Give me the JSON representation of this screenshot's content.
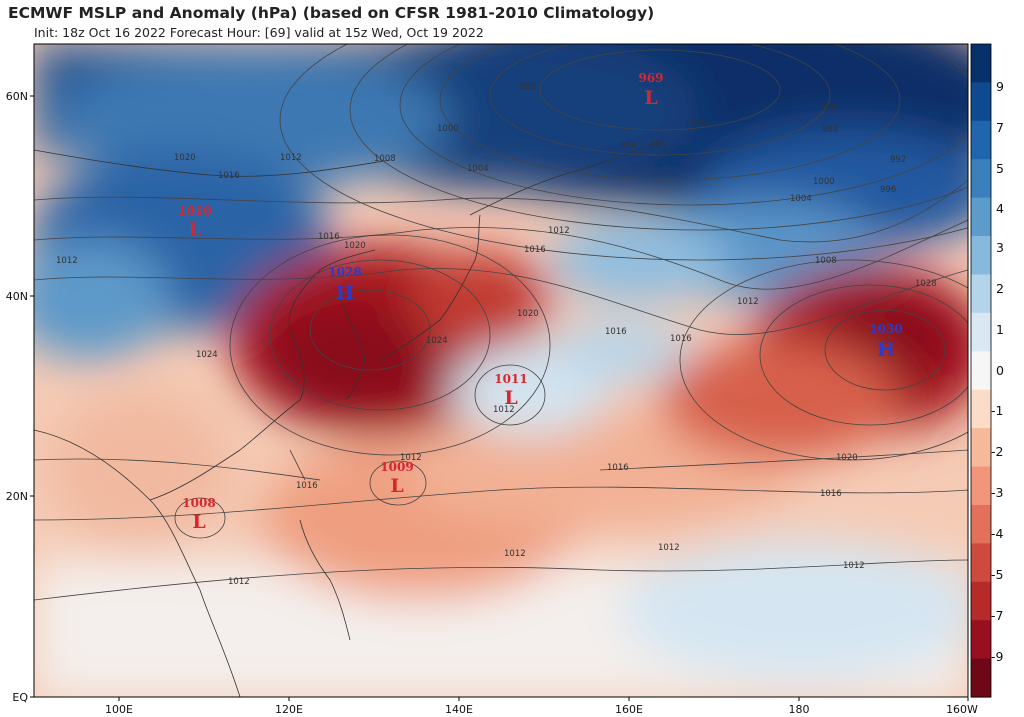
{
  "header": {
    "title": "ECMWF MSLP and Anomaly (hPa) (based on CFSR 1981-2010 Climatology)",
    "subtitle": "Init: 18z Oct 16 2022   Forecast Hour: [69]   valid at 15z Wed, Oct 19 2022"
  },
  "axes": {
    "lat_labels": [
      "60N",
      "40N",
      "20N",
      "EQ"
    ],
    "lon_labels": [
      "100E",
      "120E",
      "140E",
      "160E",
      "180",
      "160W"
    ]
  },
  "colorbar": {
    "ticks": [
      "9",
      "7",
      "5",
      "4",
      "3",
      "2",
      "1",
      "0",
      "-1",
      "-2",
      "-3",
      "-4",
      "-5",
      "-7",
      "-9"
    ],
    "colors": [
      "#08306b",
      "#0d4a8f",
      "#1f66ad",
      "#3a80bd",
      "#5b9ccc",
      "#86b9dc",
      "#b4d4e9",
      "#dae8f3",
      "#f6f6f6",
      "#fbdcc9",
      "#f7b99b",
      "#f1967a",
      "#e2705a",
      "#cf4a3e",
      "#b62a2a",
      "#98101f",
      "#6e0716"
    ]
  },
  "systems": [
    {
      "type": "L",
      "pressure": "969",
      "color": "#d8262e"
    },
    {
      "type": "L",
      "pressure": "1010",
      "color": "#d8262e"
    },
    {
      "type": "H",
      "pressure": "1028",
      "color": "#2a3cc8"
    },
    {
      "type": "H",
      "pressure": "1030",
      "color": "#2a3cc8"
    },
    {
      "type": "L",
      "pressure": "1011",
      "color": "#d8262e"
    },
    {
      "type": "L",
      "pressure": "1009",
      "color": "#d8262e"
    },
    {
      "type": "L",
      "pressure": "1008",
      "color": "#d8262e"
    }
  ],
  "contour_labels": [
    "996",
    "984",
    "976",
    "980",
    "984",
    "988",
    "992",
    "996",
    "1000",
    "1004",
    "1008",
    "1012",
    "1016",
    "1020",
    "1024",
    "1028",
    "1012",
    "1016",
    "1020",
    "1016",
    "1020",
    "1024",
    "1012",
    "1016",
    "1020",
    "1016",
    "1012",
    "1012",
    "1016",
    "1012",
    "1008",
    "1004",
    "1000",
    "1016",
    "1012",
    "1012",
    "1012",
    "1016",
    "1012"
  ]
}
